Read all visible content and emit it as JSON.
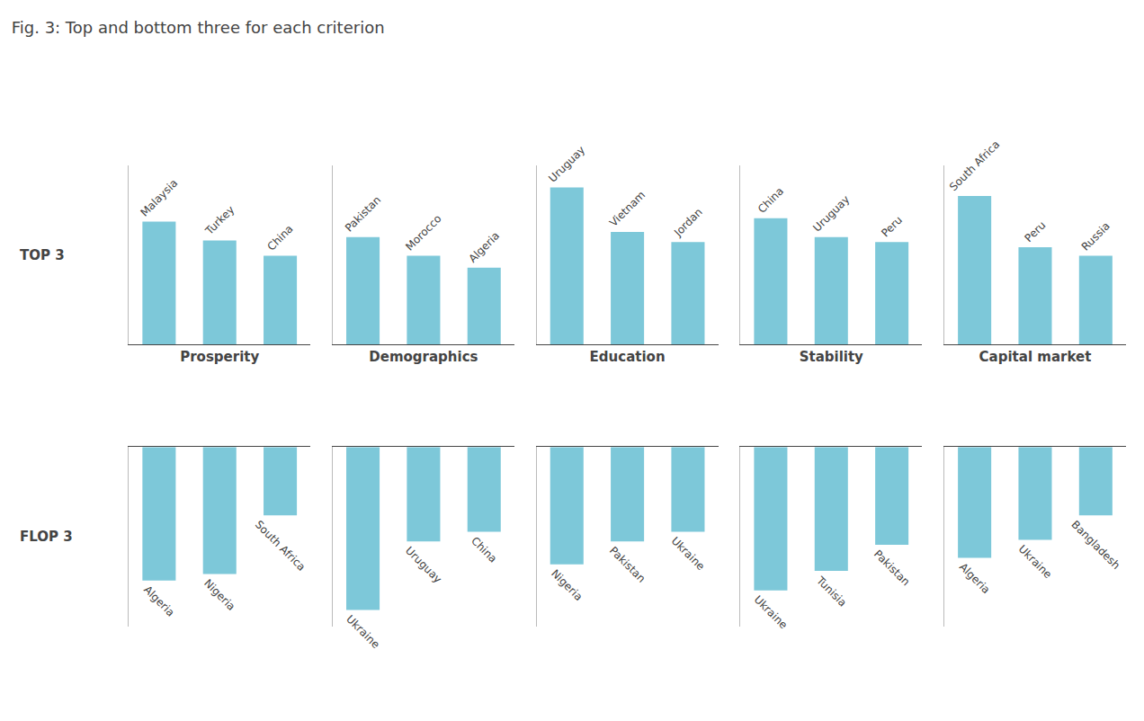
{
  "chart_data": [
    {
      "type": "bar",
      "title": "Fig. 3: Top and bottom three for each criterion",
      "annotations": [
        "TOP 3"
      ],
      "xlabel": "Prosperity",
      "categories": [
        "Malaysia",
        "Turkey",
        "China"
      ],
      "values": [
        0.72,
        0.61,
        0.52
      ],
      "color": "#7DC8D9",
      "ylim": [
        0,
        1.05
      ],
      "tick_labels": false,
      "grid": false
    },
    {
      "type": "bar",
      "xlabel": "Demographics",
      "categories": [
        "Pakistan",
        "Morocco",
        "Algeria"
      ],
      "values": [
        0.63,
        0.52,
        0.45
      ],
      "color": "#7DC8D9",
      "ylim": [
        0,
        1.05
      ],
      "tick_labels": false,
      "grid": false
    },
    {
      "type": "bar",
      "xlabel": "Education",
      "categories": [
        "Uruguay",
        "Vietnam",
        "Jordan"
      ],
      "values": [
        0.92,
        0.66,
        0.6
      ],
      "color": "#7DC8D9",
      "ylim": [
        0,
        1.05
      ],
      "tick_labels": false,
      "grid": false
    },
    {
      "type": "bar",
      "xlabel": "Stability",
      "categories": [
        "China",
        "Uruguay",
        "Peru"
      ],
      "values": [
        0.74,
        0.63,
        0.6
      ],
      "color": "#7DC8D9",
      "ylim": [
        0,
        1.05
      ],
      "tick_labels": false,
      "grid": false
    },
    {
      "type": "bar",
      "xlabel": "Capital market",
      "categories": [
        "South Africa",
        "Peru",
        "Russia"
      ],
      "values": [
        0.87,
        0.57,
        0.52
      ],
      "color": "#7DC8D9",
      "ylim": [
        0,
        1.05
      ],
      "tick_labels": false,
      "grid": false
    },
    {
      "type": "bar",
      "annotations": [
        "FLOP 3"
      ],
      "categories": [
        "Algeria",
        "Nigeria",
        "South Africa"
      ],
      "values": [
        -0.82,
        -0.78,
        -0.42
      ],
      "color": "#7DC8D9",
      "ylim": [
        -1.1,
        0
      ],
      "tick_labels": false,
      "grid": false
    },
    {
      "type": "bar",
      "categories": [
        "Ukraine",
        "Uruguay",
        "China"
      ],
      "values": [
        -1.0,
        -0.58,
        -0.52
      ],
      "color": "#7DC8D9",
      "ylim": [
        -1.1,
        0
      ],
      "tick_labels": false,
      "grid": false
    },
    {
      "type": "bar",
      "categories": [
        "Nigeria",
        "Pakistan",
        "Ukraine"
      ],
      "values": [
        -0.72,
        -0.58,
        -0.52
      ],
      "color": "#7DC8D9",
      "ylim": [
        -1.1,
        0
      ],
      "tick_labels": false,
      "grid": false
    },
    {
      "type": "bar",
      "categories": [
        "Ukraine",
        "Tunisia",
        "Pakistan"
      ],
      "values": [
        -0.88,
        -0.76,
        -0.6
      ],
      "color": "#7DC8D9",
      "ylim": [
        -1.1,
        0
      ],
      "tick_labels": false,
      "grid": false
    },
    {
      "type": "bar",
      "categories": [
        "Algeria",
        "Ukraine",
        "Bangladesh"
      ],
      "values": [
        -0.68,
        -0.57,
        -0.42
      ],
      "color": "#7DC8D9",
      "ylim": [
        -1.1,
        0
      ],
      "tick_labels": false,
      "grid": false
    }
  ]
}
